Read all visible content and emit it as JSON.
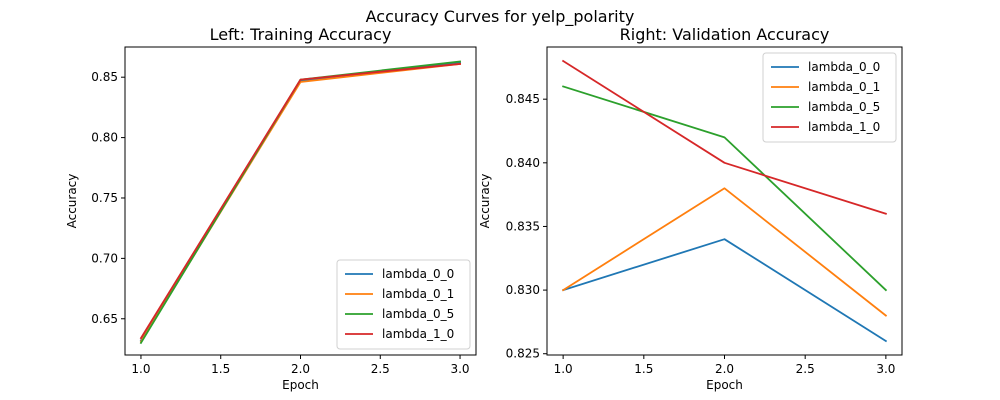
{
  "figure": {
    "suptitle": "Accuracy Curves for yelp_polarity"
  },
  "chart_data": [
    {
      "type": "line",
      "title": "Left: Training Accuracy",
      "xlabel": "Epoch",
      "ylabel": "Accuracy",
      "xlim": [
        0.9,
        3.1
      ],
      "ylim": [
        0.62,
        0.875
      ],
      "xticks": [
        "1.0",
        "1.5",
        "2.0",
        "2.5",
        "3.0"
      ],
      "yticks": [
        "0.65",
        "0.70",
        "0.75",
        "0.80",
        "0.85"
      ],
      "legend_position": "lower-right",
      "x": [
        1,
        2,
        3
      ],
      "series": [
        {
          "name": "lambda_0_0",
          "color": "#1f77b4",
          "values": [
            0.632,
            0.847,
            0.862
          ]
        },
        {
          "name": "lambda_0_1",
          "color": "#ff7f0e",
          "values": [
            0.631,
            0.846,
            0.861
          ]
        },
        {
          "name": "lambda_0_5",
          "color": "#2ca02c",
          "values": [
            0.63,
            0.848,
            0.863
          ]
        },
        {
          "name": "lambda_1_0",
          "color": "#d62728",
          "values": [
            0.634,
            0.848,
            0.861
          ]
        }
      ]
    },
    {
      "type": "line",
      "title": "Right: Validation Accuracy",
      "xlabel": "Epoch",
      "ylabel": "Accuracy",
      "xlim": [
        0.9,
        3.1
      ],
      "ylim": [
        0.8249,
        0.8491
      ],
      "xticks": [
        "1.0",
        "1.5",
        "2.0",
        "2.5",
        "3.0"
      ],
      "yticks": [
        "0.825",
        "0.830",
        "0.835",
        "0.840",
        "0.845"
      ],
      "legend_position": "upper-right",
      "x": [
        1,
        2,
        3
      ],
      "series": [
        {
          "name": "lambda_0_0",
          "color": "#1f77b4",
          "values": [
            0.83,
            0.834,
            0.826
          ]
        },
        {
          "name": "lambda_0_1",
          "color": "#ff7f0e",
          "values": [
            0.83,
            0.838,
            0.828
          ]
        },
        {
          "name": "lambda_0_5",
          "color": "#2ca02c",
          "values": [
            0.846,
            0.842,
            0.83
          ]
        },
        {
          "name": "lambda_1_0",
          "color": "#d62728",
          "values": [
            0.848,
            0.84,
            0.836
          ]
        }
      ]
    }
  ]
}
